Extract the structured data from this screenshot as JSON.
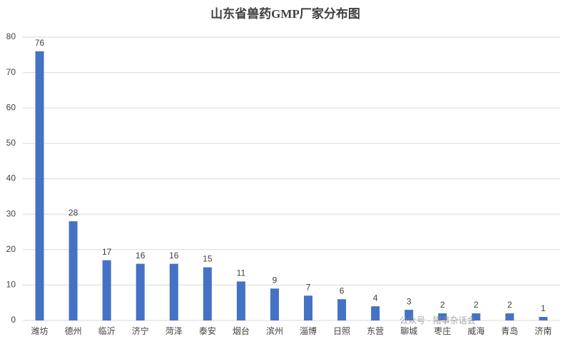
{
  "chart_data": {
    "type": "bar",
    "title": "山东省兽药GMP厂家分布图",
    "categories": [
      "潍坊",
      "德州",
      "临沂",
      "济宁",
      "菏泽",
      "泰安",
      "烟台",
      "滨州",
      "淄博",
      "日照",
      "东营",
      "聊城",
      "枣庄",
      "威海",
      "青岛",
      "济南"
    ],
    "values": [
      76,
      28,
      17,
      16,
      16,
      15,
      11,
      9,
      7,
      6,
      4,
      3,
      2,
      2,
      2,
      1
    ],
    "color": "#4472c4",
    "ylim": [
      0,
      80
    ],
    "yticks": [
      0,
      10,
      20,
      30,
      40,
      50,
      60,
      70,
      80
    ],
    "grid": true
  },
  "watermark": "公众号 · 猪事杂话会"
}
